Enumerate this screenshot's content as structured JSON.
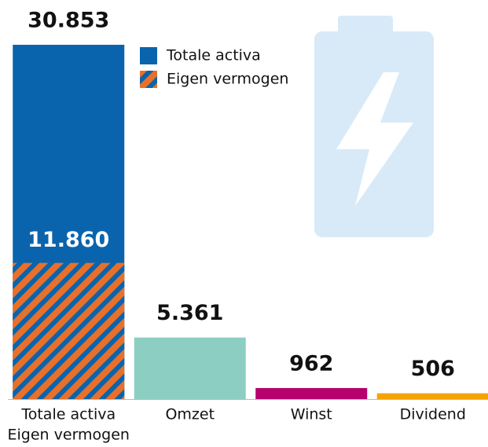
{
  "chart_data": {
    "type": "bar",
    "categories": [
      [
        "Totale activa",
        "Eigen vermogen"
      ],
      "Omzet",
      "Winst",
      "Dividend"
    ],
    "values": [
      30853,
      5361,
      962,
      506
    ],
    "value_labels": [
      "30.853",
      "5.361",
      "962",
      "506"
    ],
    "colors": [
      "#0a64ad",
      "#8ccfc2",
      "#b5006e",
      "#f4a300"
    ],
    "overlay": {
      "name": "Eigen vermogen",
      "value": 11860,
      "value_label": "11.860",
      "color": "#e8702a",
      "hatch": "#0a64ad"
    },
    "legend": [
      {
        "name": "Totale activa",
        "color": "#0a64ad"
      },
      {
        "name": "Eigen vermogen",
        "color": "#e8702a",
        "hatch": "#0a64ad"
      }
    ]
  }
}
